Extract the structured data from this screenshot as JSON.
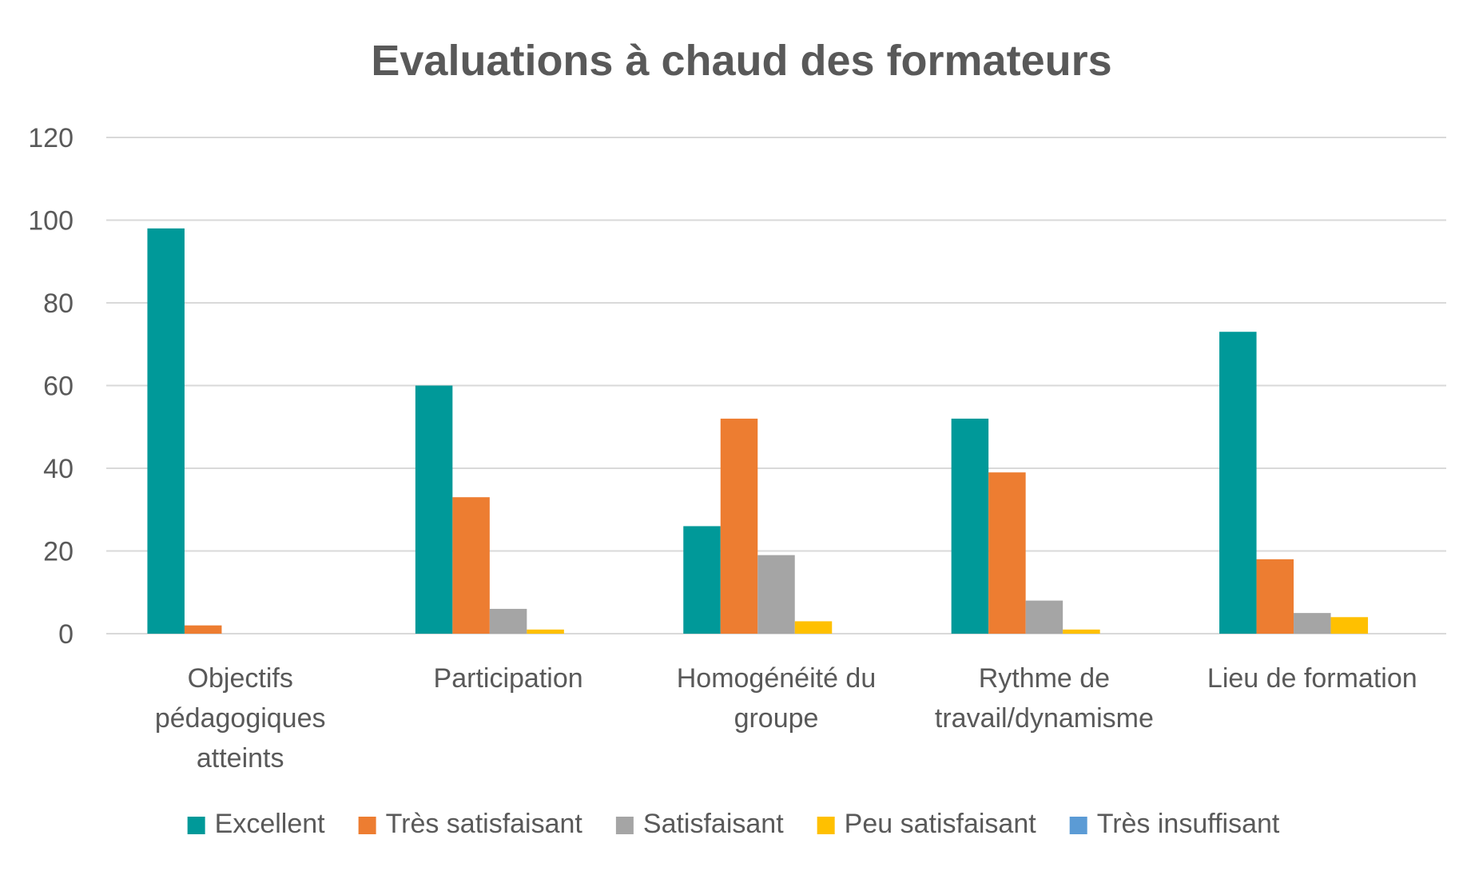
{
  "chart_data": {
    "type": "bar",
    "title": "Evaluations à chaud des formateurs",
    "xlabel": "",
    "ylabel": "",
    "ylim": [
      0,
      120
    ],
    "yticks": [
      0,
      20,
      40,
      60,
      80,
      100,
      120
    ],
    "grid": true,
    "legend_position": "bottom",
    "categories": [
      [
        "Objectifs",
        "pédagogiques",
        "atteints"
      ],
      [
        "Participation"
      ],
      [
        "Homogénéité du",
        "groupe"
      ],
      [
        "Rythme de",
        "travail/dynamisme"
      ],
      [
        "Lieu de formation"
      ]
    ],
    "series": [
      {
        "name": "Excellent",
        "color": "#009999",
        "values": [
          98,
          60,
          26,
          52,
          73
        ]
      },
      {
        "name": "Très satisfaisant",
        "color": "#ED7D31",
        "values": [
          2,
          33,
          52,
          39,
          18
        ]
      },
      {
        "name": "Satisfaisant",
        "color": "#A5A5A5",
        "values": [
          0,
          6,
          19,
          8,
          5
        ]
      },
      {
        "name": "Peu satisfaisant",
        "color": "#FFC000",
        "values": [
          0,
          1,
          3,
          1,
          4
        ]
      },
      {
        "name": "Très insuffisant",
        "color": "#5B9BD5",
        "values": [
          0,
          0,
          0,
          0,
          0
        ]
      }
    ]
  }
}
